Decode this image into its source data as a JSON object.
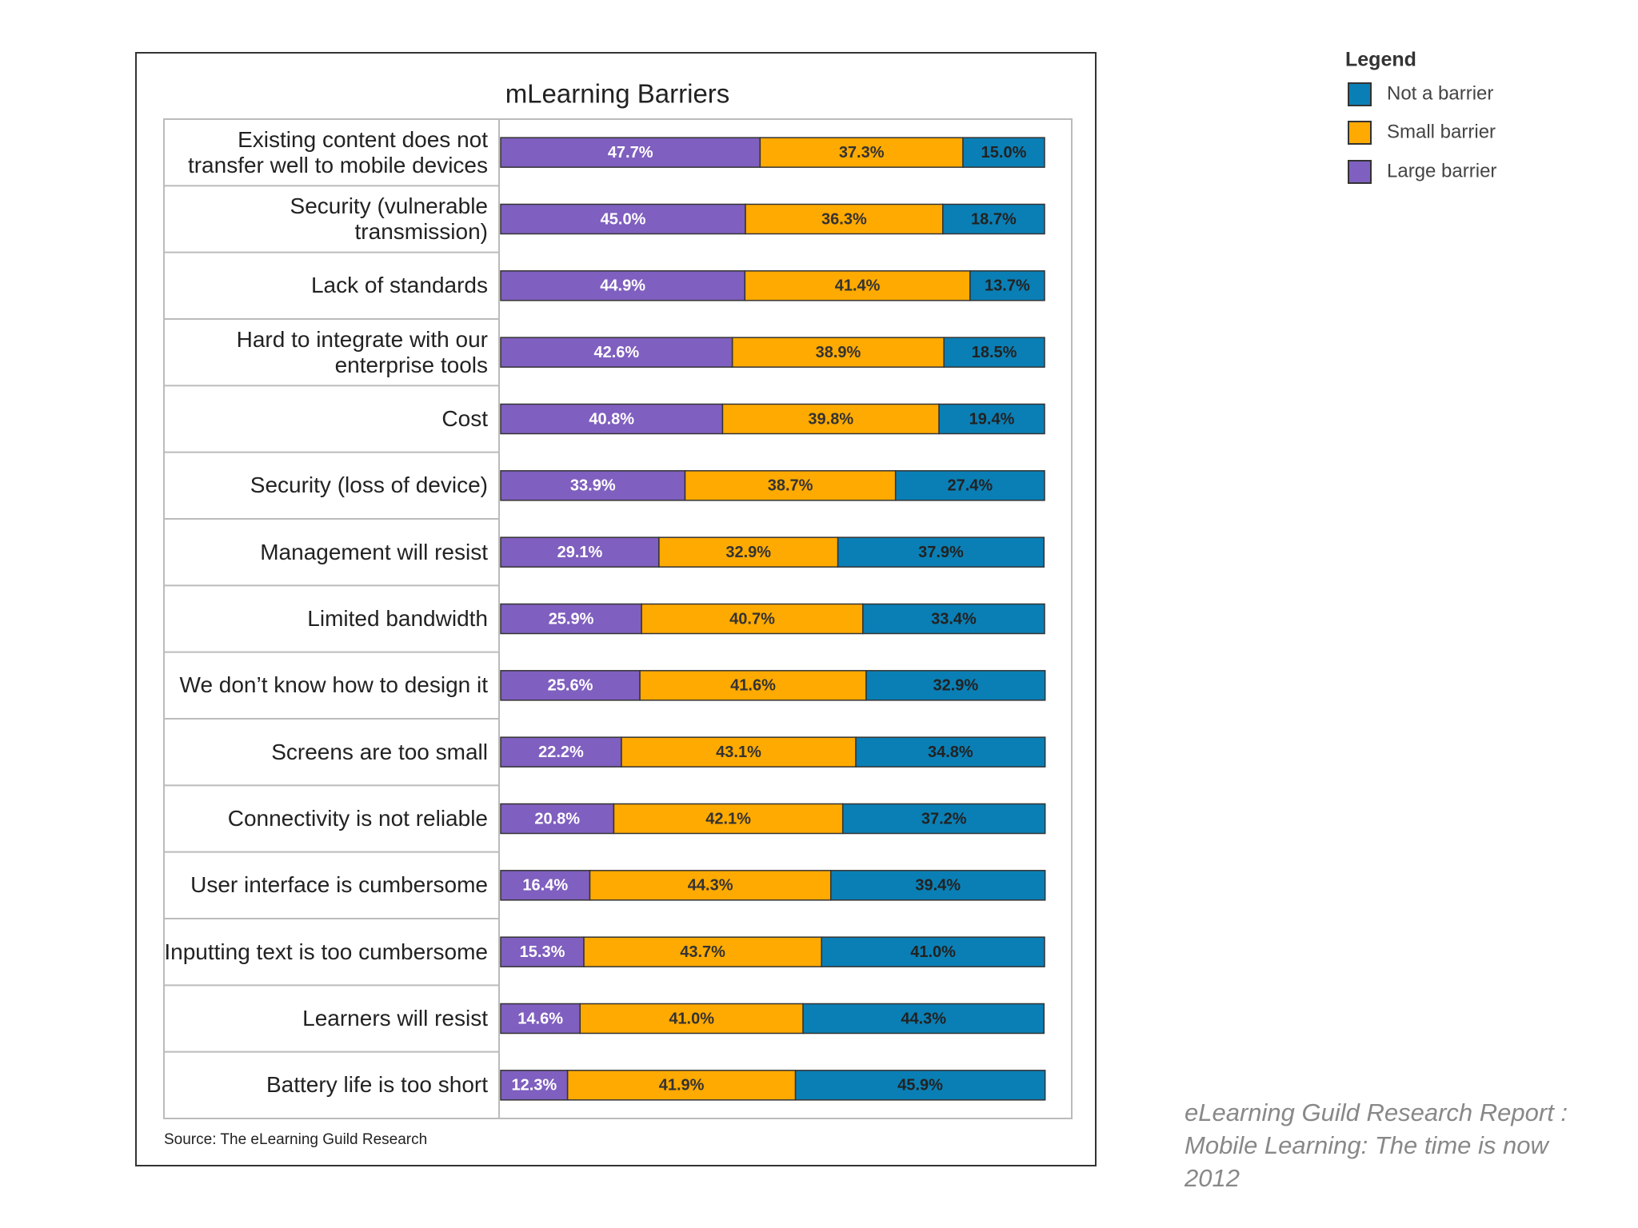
{
  "chart_data": {
    "type": "stacked-bar-horizontal",
    "title": "mLearning Barriers",
    "categories": [
      "Existing content does not transfer well to mobile devices",
      "Security (vulnerable transmission)",
      "Lack of standards",
      "Hard to integrate with our enterprise tools",
      "Cost",
      "Security (loss of device)",
      "Management will resist",
      "Limited bandwidth",
      "We don’t know how to design it",
      "Screens are too small",
      "Connectivity is not reliable",
      "User interface is cumbersome",
      "Inputting text is too cumbersome",
      "Learners will resist",
      "Battery life is too short"
    ],
    "series": [
      {
        "name": "Large barrier",
        "color": "#7f5fbf",
        "values": [
          47.7,
          45.0,
          44.9,
          42.6,
          40.8,
          33.9,
          29.1,
          25.9,
          25.6,
          22.2,
          20.8,
          16.4,
          15.3,
          14.6,
          12.3
        ],
        "value_labels": [
          "47.7%",
          "45.0%",
          "44.9%",
          "42.6%",
          "40.8%",
          "33.9%",
          "29.1%",
          "25.9%",
          "25.6%",
          "22.2%",
          "20.8%",
          "16.4%",
          "15.3%",
          "14.6%",
          "12.3%"
        ]
      },
      {
        "name": "Small barrier",
        "color": "#ffaa00",
        "values": [
          37.3,
          36.3,
          41.4,
          38.9,
          39.8,
          38.7,
          32.9,
          40.7,
          41.6,
          43.1,
          42.1,
          44.3,
          43.7,
          41.0,
          41.9
        ],
        "value_labels": [
          "37.3%",
          "36.3%",
          "41.4%",
          "38.9%",
          "39.8%",
          "38.7%",
          "32.9%",
          "40.7%",
          "41.6%",
          "43.1%",
          "42.1%",
          "44.3%",
          "43.7%",
          "41.0%",
          "41.9%"
        ]
      },
      {
        "name": "Not a barrier",
        "color": "#0a7fb5",
        "values": [
          15.0,
          18.7,
          13.7,
          18.5,
          19.4,
          27.4,
          37.9,
          33.4,
          32.9,
          34.8,
          37.2,
          39.4,
          41.0,
          44.3,
          45.9
        ],
        "value_labels": [
          "15.0%",
          "18.7%",
          "13.7%",
          "18.5%",
          "19.4%",
          "27.4%",
          "37.9%",
          "33.4%",
          "32.9%",
          "34.8%",
          "37.2%",
          "39.4%",
          "41.0%",
          "44.3%",
          "45.9%"
        ]
      }
    ],
    "xlim": [
      0,
      100
    ],
    "legend_title": "Legend",
    "source": "Source: The eLearning Guild Research"
  },
  "caption": [
    "eLearning Guild Research Report :",
    "Mobile Learning: The time is now",
    "2012"
  ]
}
